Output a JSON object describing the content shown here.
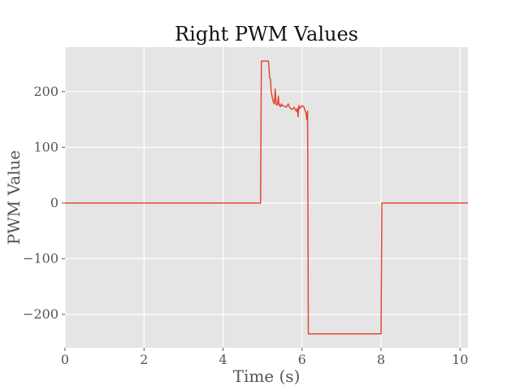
{
  "chart_data": {
    "type": "line",
    "title": "Right PWM Values",
    "xlabel": "Time (s)",
    "ylabel": "PWM Value",
    "xlim": [
      0,
      10.2
    ],
    "ylim": [
      -260,
      280
    ],
    "xticks": [
      0,
      2,
      4,
      6,
      8,
      10
    ],
    "xtick_labels": [
      "0",
      "2",
      "4",
      "6",
      "8",
      "10"
    ],
    "yticks": [
      -200,
      -100,
      0,
      100,
      200
    ],
    "ytick_labels": [
      "−200",
      "−100",
      "0",
      "100",
      "200"
    ],
    "grid": true,
    "legend": false,
    "background": "#E5E5E5",
    "series": [
      {
        "color": "#E24A33",
        "x": [
          0,
          4.95,
          4.97,
          5.15,
          5.18,
          5.2,
          5.22,
          5.25,
          5.28,
          5.3,
          5.32,
          5.34,
          5.36,
          5.38,
          5.4,
          5.42,
          5.44,
          5.46,
          5.48,
          5.5,
          5.55,
          5.6,
          5.65,
          5.7,
          5.75,
          5.8,
          5.85,
          5.88,
          5.9,
          5.92,
          5.95,
          6.0,
          6.05,
          6.08,
          6.1,
          6.12,
          6.14,
          6.16,
          6.18,
          8.0,
          8.02,
          10.2
        ],
        "y": [
          0,
          0,
          255,
          255,
          225,
          222,
          200,
          188,
          180,
          178,
          205,
          180,
          176,
          177,
          192,
          175,
          176,
          173,
          178,
          175,
          174,
          172,
          178,
          170,
          168,
          172,
          165,
          170,
          155,
          175,
          170,
          175,
          172,
          165,
          162,
          150,
          165,
          -235,
          -235,
          -235,
          0,
          0
        ]
      }
    ]
  }
}
